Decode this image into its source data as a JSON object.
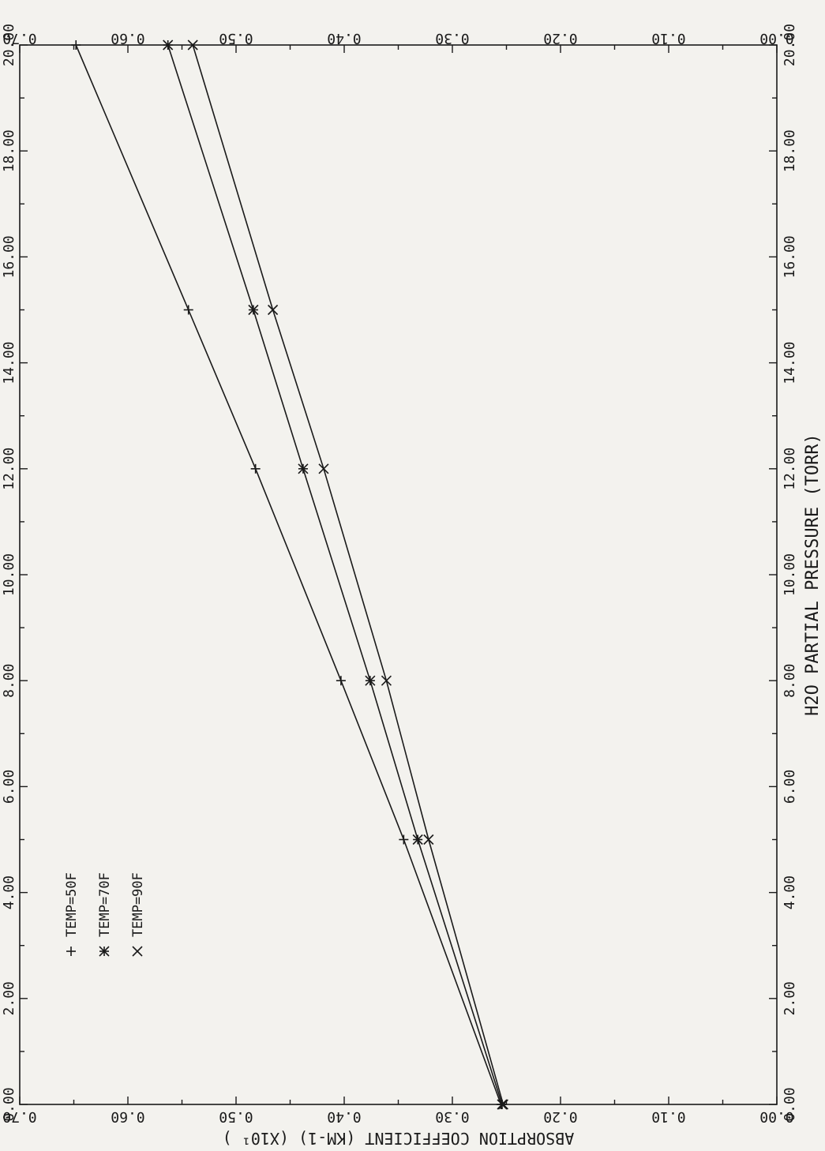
{
  "chart_data": {
    "type": "line",
    "xlabel": "H2O PARTIAL PRESSURE (TORR)",
    "ylabel": "ABSORPTION COEFFICIENT (KM-1) (X10¹ )",
    "xlim": [
      0,
      20
    ],
    "ylim": [
      0,
      0.7
    ],
    "x_ticks": [
      "0.00",
      "2.00",
      "4.00",
      "6.00",
      "8.00",
      "10.00",
      "12.00",
      "14.00",
      "16.00",
      "18.00",
      "20.00"
    ],
    "y_ticks": [
      "0.00",
      "0.10",
      "0.20",
      "0.30",
      "0.40",
      "0.50",
      "0.60",
      "0.70"
    ],
    "legend_position": "top-left",
    "series": [
      {
        "name": "TEMP=50F",
        "marker": "+",
        "x": [
          0,
          5,
          8,
          12,
          15,
          20
        ],
        "y": [
          0.255,
          0.345,
          0.403,
          0.482,
          0.544,
          0.648
        ]
      },
      {
        "name": "TEMP=70F",
        "marker": "*",
        "x": [
          0,
          5,
          8,
          12,
          15,
          20
        ],
        "y": [
          0.254,
          0.332,
          0.376,
          0.438,
          0.484,
          0.563
        ]
      },
      {
        "name": "TEMP=90F",
        "marker": "x",
        "x": [
          0,
          5,
          8,
          12,
          15,
          20
        ],
        "y": [
          0.253,
          0.322,
          0.361,
          0.419,
          0.466,
          0.54
        ]
      }
    ]
  }
}
